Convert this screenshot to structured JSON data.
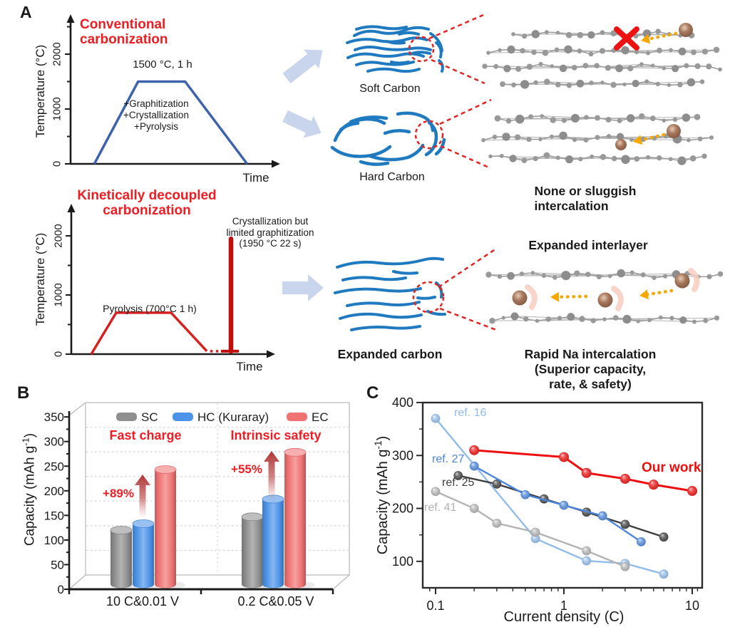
{
  "figure": {
    "panelA_label": "A",
    "panelB_label": "B",
    "panelC_label": "C"
  },
  "panelA": {
    "conventional": {
      "title": "Conventional\ncarbonization",
      "plateau_label": "1500 °C, 1 h",
      "process_steps": "+Graphitization\n+Crystallization\n+Pyrolysis",
      "ylabel": "Temperature (°C)",
      "xlabel": "Time"
    },
    "decoupled": {
      "title": "Kinetically decoupled\ncarbonization",
      "flash_label": "Crystallization but\nlimited graphitization\n(1950 °C 22 s)",
      "plateau_label": "Pyrolysis (700°C 1 h)",
      "ylabel": "Temperature (°C)",
      "xlabel": "Time"
    },
    "soft_carbon_label": "Soft Carbon",
    "hard_carbon_label": "Hard Carbon",
    "expanded_carbon_label": "Expanded carbon",
    "sluggish_caption": "None or sluggish intercalation",
    "expanded_interlayer_label": "Expanded interlayer",
    "rapid_caption": "Rapid Na intercalation\n(Superior capacity, rate, & safety)"
  },
  "panelB": {
    "ylabel_base": "Capacity (mAh g",
    "ylabel_sup": "-1",
    "ylabel_end": ")"
  },
  "panelC": {
    "xlabel": "Current density (C)",
    "ylabel_base": "Capacity (mAh g",
    "ylabel_sup": "-1",
    "ylabel_end": ")"
  },
  "colors": {
    "accent_red": "#ee1d23",
    "conventional_line_blue": "#3d63ac",
    "decoupled_line_red": "#d62121",
    "flash_spike_red": "#c20d0d",
    "carbon_sketch_blue": "#1f7ac0",
    "block_arrow_blue": "#c9d5ec",
    "atom_gray": "#979797",
    "na_ion_brown": "#a5775d",
    "na_arrow_yellow": "#f6a800",
    "dashed_callout_red": "#e32222"
  },
  "chart_data": [
    {
      "id": "conventional-carbonization-profile",
      "type": "line",
      "title": "Conventional carbonization",
      "xlabel": "Time",
      "ylabel": "Temperature (°C)",
      "yticks": [
        0,
        1000,
        2000
      ],
      "ytick_minor_step": 500,
      "ylim": [
        0,
        2600
      ],
      "x_pct": [
        11.6,
        33,
        56,
        86.3
      ],
      "temp_c": [
        0,
        1500,
        1500,
        0
      ],
      "hold_label": "1500 °C, 1 h"
    },
    {
      "id": "kinetically-decoupled-profile",
      "type": "line",
      "title": "Kinetically decoupled carbonization",
      "xlabel": "Time",
      "ylabel": "Temperature (°C)",
      "yticks": [
        0,
        1000,
        2000
      ],
      "ytick_minor_step": 500,
      "ylim": [
        0,
        2600
      ],
      "ramp_hold": {
        "x_pct": [
          10,
          22.5,
          50,
          67.9
        ],
        "temp_c": [
          0,
          700,
          700,
          50
        ]
      },
      "rest_dashed": {
        "x_pct": [
          69.6,
          76
        ],
        "temp_c": [
          50,
          50
        ]
      },
      "flash_base": {
        "x_pct": [
          75,
          84
        ],
        "temp_c": [
          50,
          50
        ]
      },
      "flash": {
        "x_pct": 80,
        "temp_base_c": 50,
        "temp_peak_c": 1950,
        "label": "Crystallization but limited graphitization (1950 °C 22 s)"
      },
      "hold_label": "Pyrolysis (700°C 1 h)"
    },
    {
      "id": "capacity-comparison",
      "type": "bar",
      "categories": [
        "10 C&0.01 V",
        "0.2 C&0.05 V"
      ],
      "ylabel": "Capacity (mAh g-1)",
      "ylim": [
        0,
        350
      ],
      "ytick_step": 50,
      "ytick_minor_step": 25,
      "series": [
        {
          "name": "SC",
          "color": "#8f8f8f",
          "values": [
            110,
            137
          ]
        },
        {
          "name": "HC (Kuraray)",
          "color": "#4d94e8",
          "values": [
            123,
            173
          ]
        },
        {
          "name": "EC",
          "color": "#f07373",
          "values": [
            233,
            268
          ]
        }
      ],
      "group_annotations": [
        {
          "header": "Fast charge",
          "gain": "+89%"
        },
        {
          "header": "Intrinsic safety",
          "gain": "+55%"
        }
      ]
    },
    {
      "id": "rate-capability",
      "type": "scatter",
      "xlabel": "Current density (C)",
      "ylabel": "Capacity (mAh g-1)",
      "xscale": "log",
      "xlim": [
        0.08,
        12
      ],
      "ylim": [
        50,
        400
      ],
      "xticks": [
        0.1,
        1,
        10
      ],
      "yticks": [
        100,
        200,
        300,
        400
      ],
      "series": [
        {
          "name": "ref. 16",
          "color": "#92bce8",
          "x": [
            0.1,
            0.6,
            1.5,
            3,
            6
          ],
          "y": [
            370,
            143,
            101,
            96,
            76
          ]
        },
        {
          "name": "ref. 41",
          "color": "#b3b3b3",
          "x": [
            0.1,
            0.2,
            0.3,
            0.6,
            1.5,
            3
          ],
          "y": [
            232,
            200,
            172,
            155,
            120,
            90
          ]
        },
        {
          "name": "ref. 25",
          "color": "#3d3d3d",
          "x": [
            0.15,
            0.3,
            0.7,
            1.5,
            3,
            6
          ],
          "y": [
            262,
            246,
            218,
            193,
            170,
            146
          ]
        },
        {
          "name": "ref. 27",
          "color": "#4c86db",
          "x": [
            0.2,
            0.5,
            1,
            2,
            4
          ],
          "y": [
            280,
            226,
            206,
            186,
            137
          ]
        },
        {
          "name": "Our work",
          "color": "#ed0f0f",
          "emphasis": true,
          "x": [
            0.2,
            1,
            1.5,
            3,
            5,
            10
          ],
          "y": [
            310,
            297,
            267,
            256,
            245,
            233
          ]
        }
      ]
    }
  ]
}
